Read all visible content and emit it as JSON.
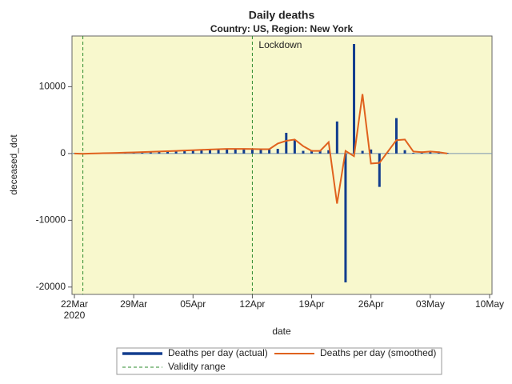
{
  "chart_data": {
    "type": "line",
    "title": "Daily deaths",
    "subtitle": "Country: US, Region: New York",
    "x_label": "date",
    "y_label": "deceased_dot",
    "x": [
      "2020-03-22",
      "2020-03-23",
      "2020-03-24",
      "2020-03-25",
      "2020-03-26",
      "2020-03-27",
      "2020-03-28",
      "2020-03-29",
      "2020-03-30",
      "2020-03-31",
      "2020-04-01",
      "2020-04-02",
      "2020-04-03",
      "2020-04-04",
      "2020-04-05",
      "2020-04-06",
      "2020-04-07",
      "2020-04-08",
      "2020-04-09",
      "2020-04-10",
      "2020-04-11",
      "2020-04-12",
      "2020-04-13",
      "2020-04-14",
      "2020-04-15",
      "2020-04-16",
      "2020-04-17",
      "2020-04-18",
      "2020-04-19",
      "2020-04-20",
      "2020-04-21",
      "2020-04-22",
      "2020-04-23",
      "2020-04-24",
      "2020-04-25",
      "2020-04-26",
      "2020-04-27",
      "2020-04-28",
      "2020-04-29",
      "2020-04-30",
      "2020-05-01",
      "2020-05-02",
      "2020-05-03",
      "2020-05-04",
      "2020-05-05"
    ],
    "series": [
      {
        "name": "Deaths per day (actual)",
        "kind": "bar",
        "color": "#123d8e",
        "values": [
          50,
          10,
          30,
          60,
          80,
          100,
          130,
          160,
          190,
          220,
          260,
          300,
          350,
          400,
          450,
          500,
          550,
          600,
          650,
          700,
          700,
          650,
          650,
          700,
          700,
          3100,
          2000,
          400,
          500,
          500,
          500,
          4800,
          -19300,
          16400,
          400,
          600,
          -5000,
          100,
          5300,
          500,
          100,
          300,
          300,
          300,
          100
        ]
      },
      {
        "name": "Deaths per day (smoothed)",
        "kind": "line",
        "color": "#e0621e",
        "values": [
          0,
          -50,
          0,
          30,
          60,
          100,
          130,
          170,
          210,
          250,
          300,
          350,
          400,
          450,
          500,
          550,
          600,
          650,
          700,
          700,
          700,
          680,
          650,
          650,
          1500,
          1900,
          2100,
          1100,
          400,
          400,
          1700,
          -7500,
          400,
          -400,
          8900,
          -1500,
          -1400,
          300,
          2000,
          2100,
          300,
          200,
          300,
          200,
          0
        ]
      }
    ],
    "reference_lines": {
      "name": "Validity range",
      "color": "#2e8b2e",
      "x": [
        "2020-03-23",
        "2020-04-12"
      ]
    },
    "annotations": [
      {
        "text": "Lockdown",
        "x": "2020-04-12"
      }
    ],
    "xlim": [
      "2020-03-22",
      "2020-05-10"
    ],
    "xticks": [
      {
        "value": "2020-03-22",
        "label": "22Mar\n2020"
      },
      {
        "value": "2020-03-29",
        "label": "29Mar"
      },
      {
        "value": "2020-04-05",
        "label": "05Apr"
      },
      {
        "value": "2020-04-12",
        "label": "12Apr"
      },
      {
        "value": "2020-04-19",
        "label": "19Apr"
      },
      {
        "value": "2020-04-26",
        "label": "26Apr"
      },
      {
        "value": "2020-05-03",
        "label": "03May"
      },
      {
        "value": "2020-05-10",
        "label": "10May"
      }
    ],
    "ylim": [
      -21100,
      17600
    ],
    "yticks": [
      -20000,
      -10000,
      0,
      10000
    ],
    "background": "#f8f8cd",
    "legend": "bottom"
  }
}
